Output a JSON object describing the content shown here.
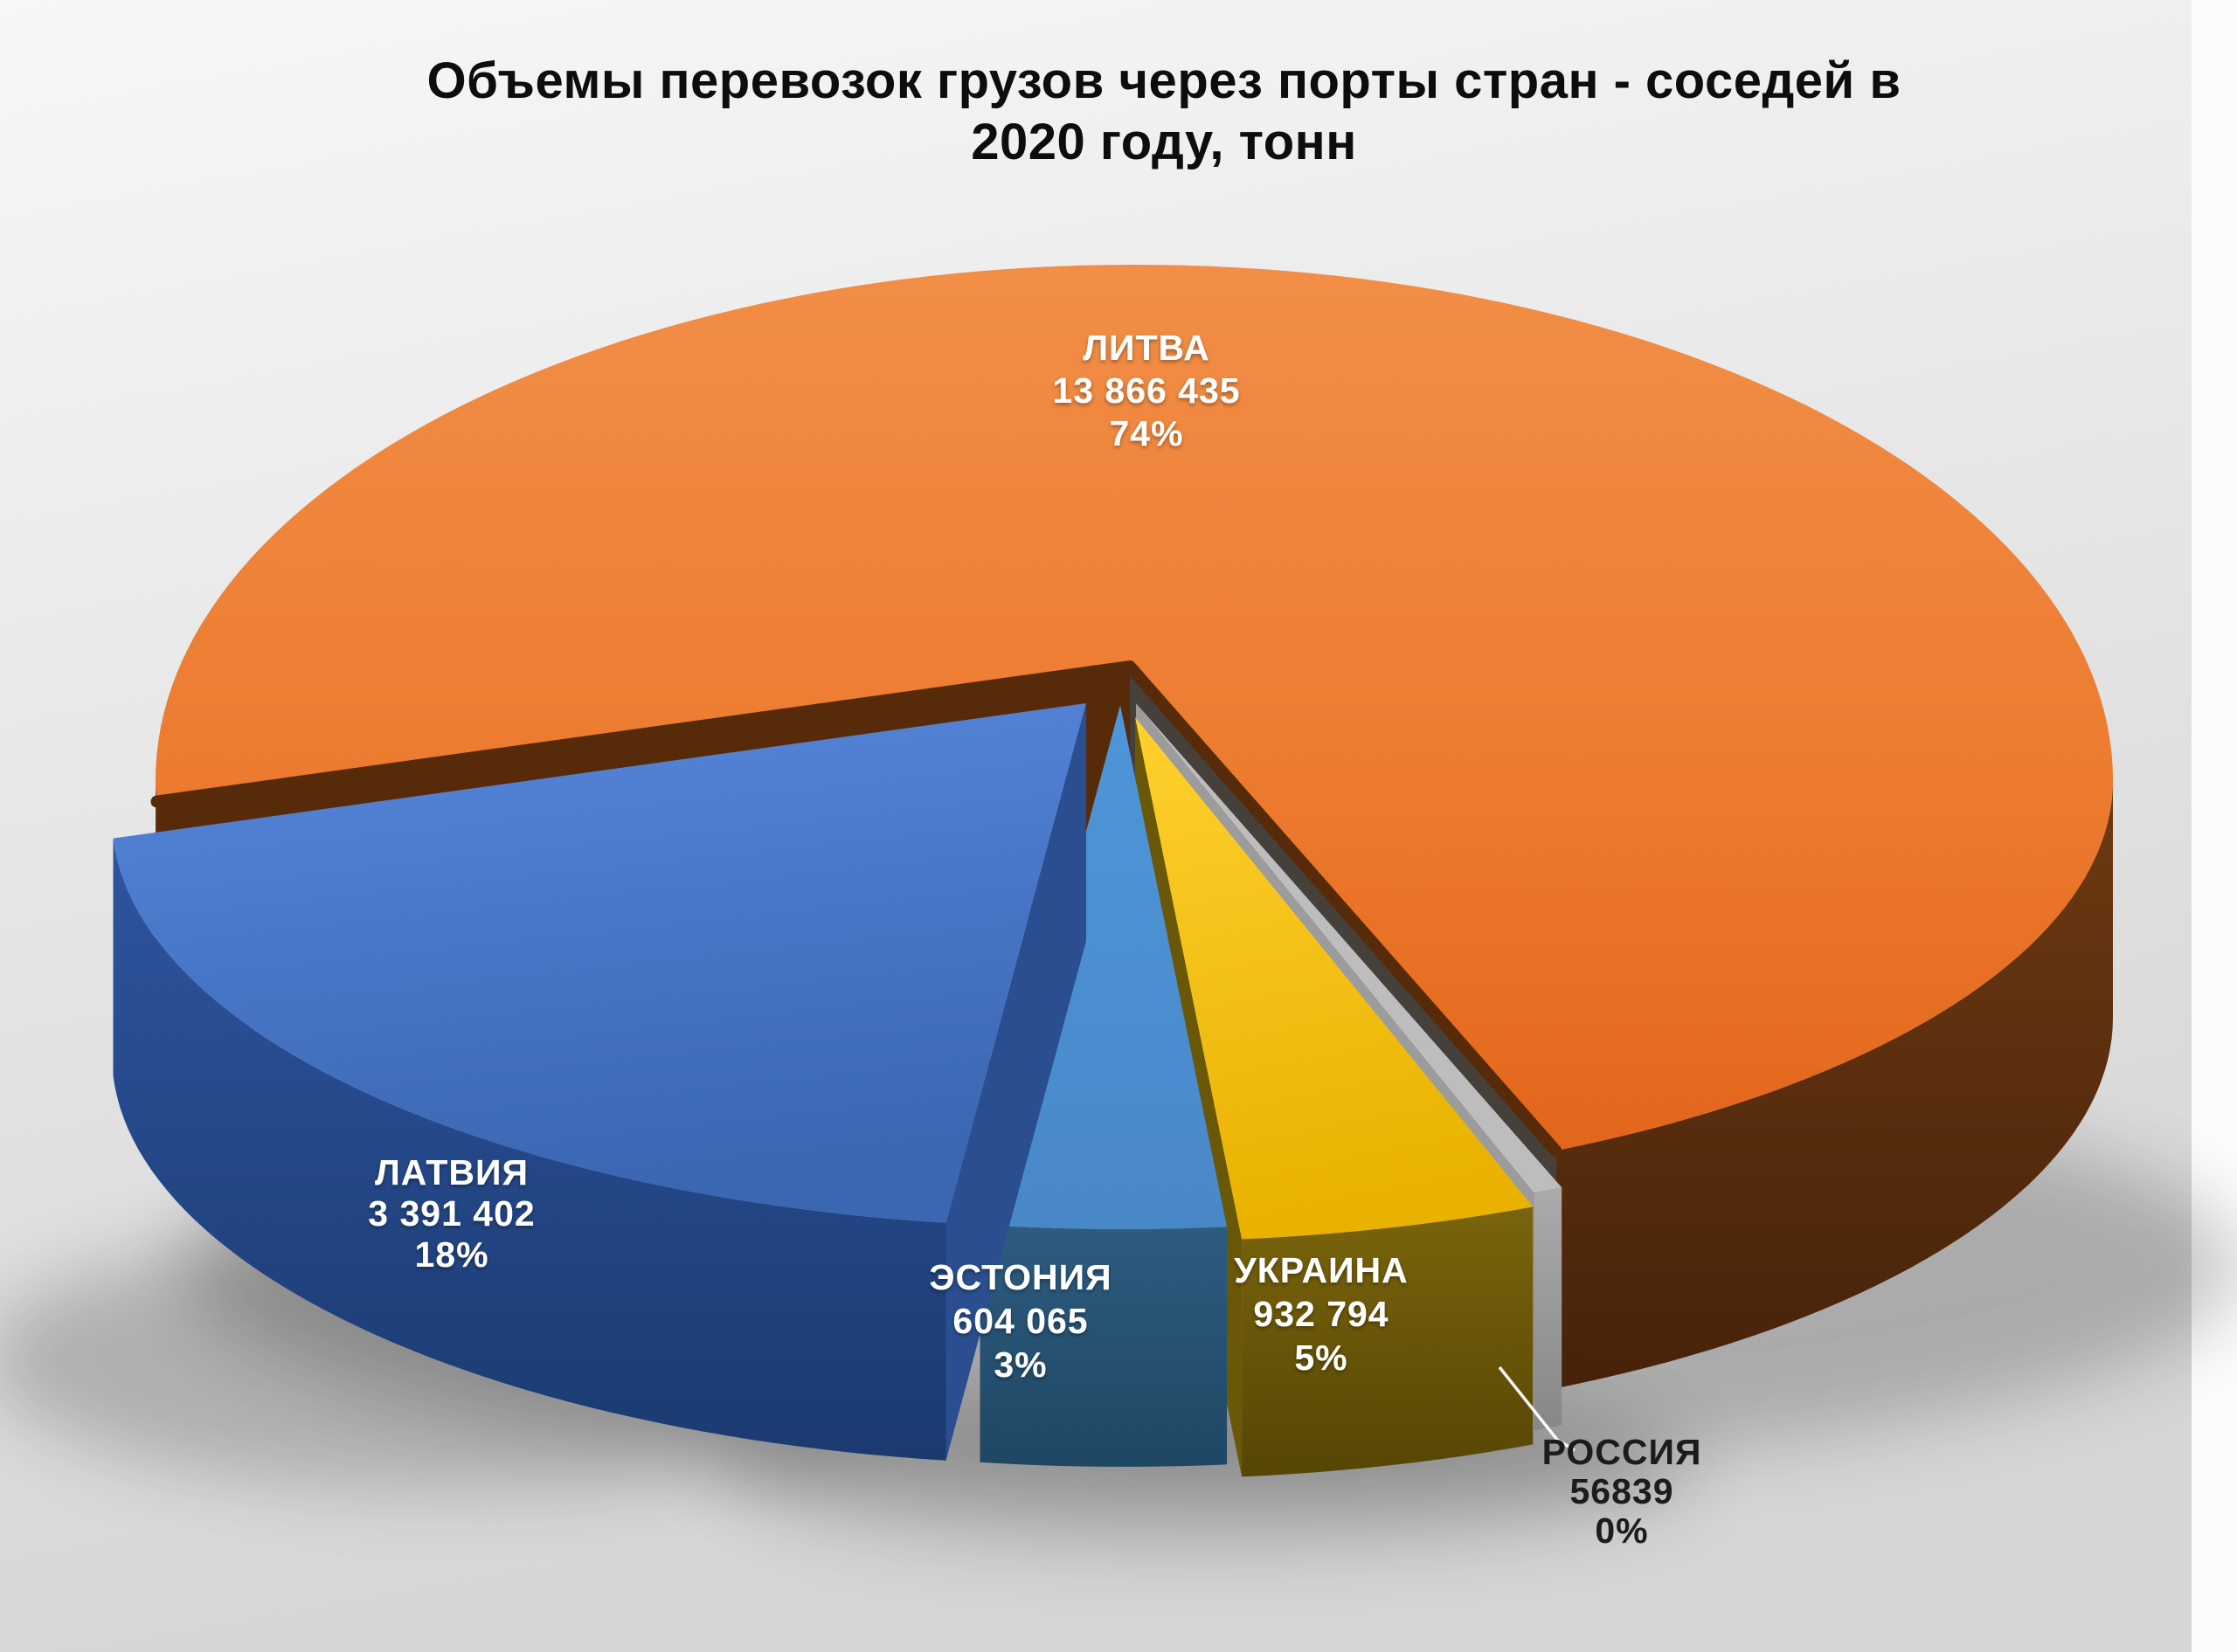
{
  "title": {
    "line1": "Объемы перевозок грузов через порты стран - соседей в",
    "line2": "2020 году, тонн"
  },
  "chart_data": {
    "type": "pie",
    "style": "3d-exploded-pie",
    "units": "тонн",
    "year_shown_in_title": "2020",
    "legend_position": "none",
    "labels_on_slices": "category + value + percent",
    "categories": [
      "ЛИТВА",
      "ЛАТВИЯ",
      "ЭСТОНИЯ",
      "УКРАИНА",
      "РОССИЯ"
    ],
    "values": [
      13866435,
      3391402,
      604065,
      932794,
      56839
    ],
    "percents": [
      74,
      18,
      3,
      5,
      0
    ],
    "slices": [
      {
        "id": "litva",
        "label": "ЛИТВА",
        "value_text": "13 866 435",
        "percent_text": "74%",
        "color": "#ED7D31",
        "side_color": "#5E3010"
      },
      {
        "id": "latvia",
        "label": "ЛАТВИЯ",
        "value_text": "3 391 402",
        "percent_text": "18%",
        "color": "#4472C4",
        "side_color": "#24477E"
      },
      {
        "id": "estonia",
        "label": "ЭСТОНИЯ",
        "value_text": "604 065",
        "percent_text": "3%",
        "color": "#5B9BD5",
        "side_color": "#2B5A78"
      },
      {
        "id": "ukraina",
        "label": "УКРАИНА",
        "value_text": "932 794",
        "percent_text": "5%",
        "color": "#FFC000",
        "side_color": "#6F5B08"
      },
      {
        "id": "rossiya",
        "label": "РОССИЯ",
        "value_text": "56839",
        "percent_text": "0%",
        "color": "#A6A6A6",
        "side_color": "#8C8C8C"
      }
    ],
    "background_color": "#E3E3E3",
    "title_color": "#0D0D0D"
  }
}
